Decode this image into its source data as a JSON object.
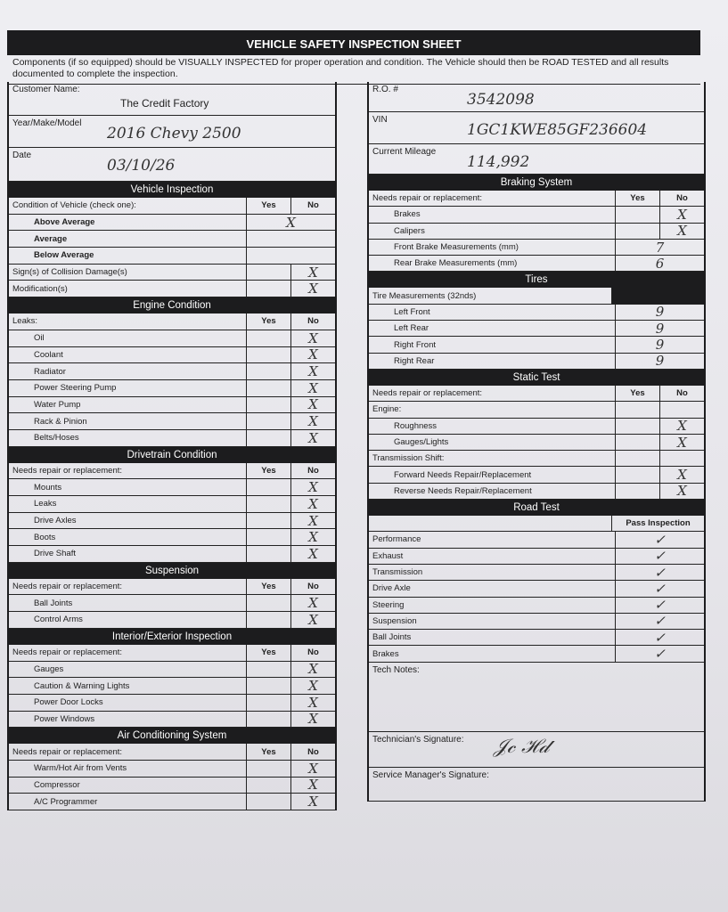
{
  "title": "VEHICLE SAFETY INSPECTION SHEET",
  "instructions": "Components (if so equipped) should be VISUALLY INSPECTED for proper operation and condition. The Vehicle should then be ROAD TESTED and all results documented to complete the inspection.",
  "info_left": [
    {
      "label": "Customer Name:",
      "value": "The Credit Factory",
      "printed": true
    },
    {
      "label": "Year/Make/Model",
      "value": "2016 Chevy 2500"
    },
    {
      "label": "Date",
      "value": "03/10/26"
    }
  ],
  "info_right": [
    {
      "label": "R.O. #",
      "value": "3542098"
    },
    {
      "label": "VIN",
      "value": "1GC1KWE85GF236604"
    },
    {
      "label": "Current Mileage",
      "value": "114,992"
    }
  ],
  "left_sections": [
    {
      "title": "Vehicle Inspection",
      "header": {
        "label": "Condition of Vehicle (check one):",
        "yes": "Yes",
        "no": "No"
      },
      "rows": [
        {
          "label": "Above Average",
          "type": "single",
          "value": "X",
          "bold": true,
          "indent": true
        },
        {
          "label": "Average",
          "type": "single",
          "value": "",
          "bold": true,
          "indent": true
        },
        {
          "label": "Below Average",
          "type": "single",
          "value": "",
          "bold": true,
          "indent": true
        },
        {
          "label": "Sign(s) of Collision Damage(s)",
          "yes": "",
          "no": "X"
        },
        {
          "label": "Modification(s)",
          "yes": "",
          "no": "X"
        }
      ]
    },
    {
      "title": "Engine Condition",
      "header": {
        "label": "Leaks:",
        "yes": "Yes",
        "no": "No"
      },
      "rows": [
        {
          "label": "Oil",
          "no": "X",
          "indent": true
        },
        {
          "label": "Coolant",
          "no": "X",
          "indent": true
        },
        {
          "label": "Radiator",
          "no": "X",
          "indent": true
        },
        {
          "label": "Power Steering Pump",
          "no": "X",
          "indent": true
        },
        {
          "label": "Water Pump",
          "no": "X",
          "indent": true
        },
        {
          "label": "Rack & Pinion",
          "no": "X",
          "indent": true
        },
        {
          "label": "Belts/Hoses",
          "no": "X",
          "indent": true
        }
      ]
    },
    {
      "title": "Drivetrain Condition",
      "header": {
        "label": "Needs repair or replacement:",
        "yes": "Yes",
        "no": "No"
      },
      "rows": [
        {
          "label": "Mounts",
          "no": "X",
          "indent": true
        },
        {
          "label": "Leaks",
          "no": "X",
          "indent": true
        },
        {
          "label": "Drive Axles",
          "no": "X",
          "indent": true
        },
        {
          "label": "Boots",
          "no": "X",
          "indent": true
        },
        {
          "label": "Drive Shaft",
          "no": "X",
          "indent": true
        }
      ]
    },
    {
      "title": "Suspension",
      "header": {
        "label": "Needs repair or replacement:",
        "yes": "Yes",
        "no": "No"
      },
      "rows": [
        {
          "label": "Ball Joints",
          "no": "X",
          "indent": true
        },
        {
          "label": "Control Arms",
          "no": "X",
          "indent": true
        }
      ]
    },
    {
      "title": "Interior/Exterior Inspection",
      "header": {
        "label": "Needs repair or replacement:",
        "yes": "Yes",
        "no": "No"
      },
      "rows": [
        {
          "label": "Gauges",
          "no": "X",
          "indent": true
        },
        {
          "label": "Caution & Warning Lights",
          "no": "X",
          "indent": true
        },
        {
          "label": "Power Door Locks",
          "no": "X",
          "indent": true
        },
        {
          "label": "Power Windows",
          "no": "X",
          "indent": true
        }
      ]
    },
    {
      "title": "Air Conditioning System",
      "header": {
        "label": "Needs repair or replacement:",
        "yes": "Yes",
        "no": "No"
      },
      "rows": [
        {
          "label": "Warm/Hot Air from Vents",
          "no": "X",
          "indent": true
        },
        {
          "label": "Compressor",
          "no": "X",
          "indent": true
        },
        {
          "label": "A/C Programmer",
          "no": "X",
          "indent": true
        }
      ]
    }
  ],
  "right_sections": [
    {
      "title": "Braking System",
      "header": {
        "label": "Needs repair or replacement:",
        "yes": "Yes",
        "no": "No"
      },
      "rows": [
        {
          "label": "Brakes",
          "no": "X",
          "indent": true
        },
        {
          "label": "Calipers",
          "no": "X",
          "indent": true
        },
        {
          "label": "Front Brake Measurements (mm)",
          "type": "single",
          "value": "7",
          "indent": true
        },
        {
          "label": "Rear Brake Measurements (mm)",
          "type": "single",
          "value": "6",
          "indent": true
        }
      ]
    },
    {
      "title": "Tires",
      "header": {
        "label": "Tire Measurements (32nds)",
        "type": "dark"
      },
      "rows": [
        {
          "label": "Left Front",
          "type": "single",
          "value": "9",
          "indent": true
        },
        {
          "label": "Left Rear",
          "type": "single",
          "value": "9",
          "indent": true
        },
        {
          "label": "Right Front",
          "type": "single",
          "value": "9",
          "indent": true
        },
        {
          "label": "Right Rear",
          "type": "single",
          "value": "9",
          "indent": true
        }
      ]
    },
    {
      "title": "Static Test",
      "header": {
        "label": "Needs repair or replacement:",
        "yes": "Yes",
        "no": "No"
      },
      "rows": [
        {
          "label": "Engine:",
          "no": ""
        },
        {
          "label": "Roughness",
          "no": "X",
          "indent": true
        },
        {
          "label": "Gauges/Lights",
          "no": "X",
          "indent": true
        },
        {
          "label": "Transmission Shift:",
          "no": ""
        },
        {
          "label": "Forward Needs Repair/Replacement",
          "no": "X",
          "indent": true
        },
        {
          "label": "Reverse Needs Repair/Replacement",
          "no": "X",
          "indent": true
        }
      ]
    },
    {
      "title": "Road Test",
      "header": {
        "label": "",
        "pass": "Pass Inspection"
      },
      "rows": [
        {
          "label": "Performance",
          "type": "single",
          "value": "✓"
        },
        {
          "label": "Exhaust",
          "type": "single",
          "value": "✓"
        },
        {
          "label": "Transmission",
          "type": "single",
          "value": "✓"
        },
        {
          "label": "Drive Axle",
          "type": "single",
          "value": "✓"
        },
        {
          "label": "Steering",
          "type": "single",
          "value": "✓"
        },
        {
          "label": "Suspension",
          "type": "single",
          "value": "✓"
        },
        {
          "label": "Ball Joints",
          "type": "single",
          "value": "✓"
        },
        {
          "label": "Brakes",
          "type": "single",
          "value": "✓"
        }
      ]
    }
  ],
  "tech_notes": {
    "label": "Tech Notes:",
    "value": ""
  },
  "tech_signature": {
    "label": "Technician's Signature:",
    "value": "signature"
  },
  "manager_signature": {
    "label": "Service Manager's Signature:",
    "value": ""
  }
}
